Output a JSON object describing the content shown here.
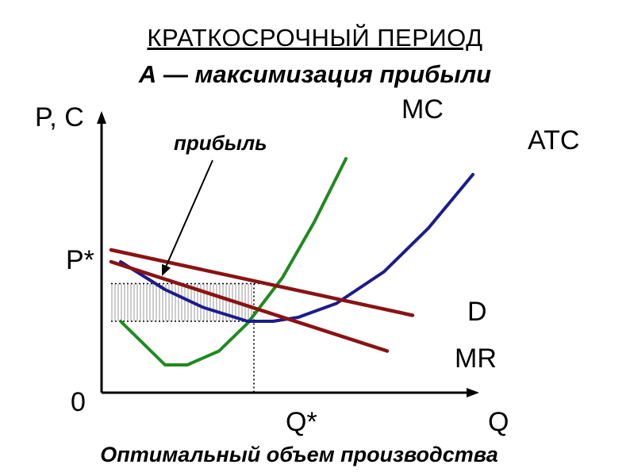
{
  "chart_data": {
    "type": "line",
    "title": "КРАТКОСРОЧНЫЙ ПЕРИОД",
    "subtitle": "А — максимизация прибыли",
    "ylabel": "P, C",
    "xlabel": "Q",
    "origin_label": "0",
    "price_marker": "P*",
    "quantity_marker": "Q*",
    "shaded_label": "прибыль",
    "caption": "Оптимальный объем производства",
    "grid": false,
    "colors": {
      "MC": "#1f8a1f",
      "ATC": "#1c1c8c",
      "D": "#8b1212",
      "MR": "#8b1212",
      "axis": "#000000",
      "shade": "#9a9a9a"
    },
    "series": [
      {
        "name": "MC",
        "points": [
          [
            0.6,
            3.6
          ],
          [
            2.0,
            1.4
          ],
          [
            2.7,
            1.4
          ],
          [
            3.7,
            2.1
          ],
          [
            4.6,
            3.5
          ],
          [
            5.7,
            5.8
          ],
          [
            6.7,
            8.6
          ],
          [
            7.7,
            11.8
          ]
        ]
      },
      {
        "name": "ATC",
        "points": [
          [
            0.6,
            6.6
          ],
          [
            2.0,
            5.2
          ],
          [
            3.2,
            4.3
          ],
          [
            4.6,
            3.6
          ],
          [
            5.4,
            3.6
          ],
          [
            6.2,
            3.8
          ],
          [
            7.4,
            4.5
          ],
          [
            8.9,
            6.1
          ],
          [
            10.3,
            8.3
          ],
          [
            11.7,
            11.0
          ]
        ]
      },
      {
        "name": "D",
        "points": [
          [
            0.3,
            7.2
          ],
          [
            9.8,
            3.9
          ]
        ]
      },
      {
        "name": "MR",
        "points": [
          [
            0.3,
            6.6
          ],
          [
            9.0,
            2.1
          ]
        ]
      }
    ],
    "equilibrium": {
      "q": 4.8,
      "p_star": 5.5,
      "atc_at_q": 3.6
    }
  }
}
